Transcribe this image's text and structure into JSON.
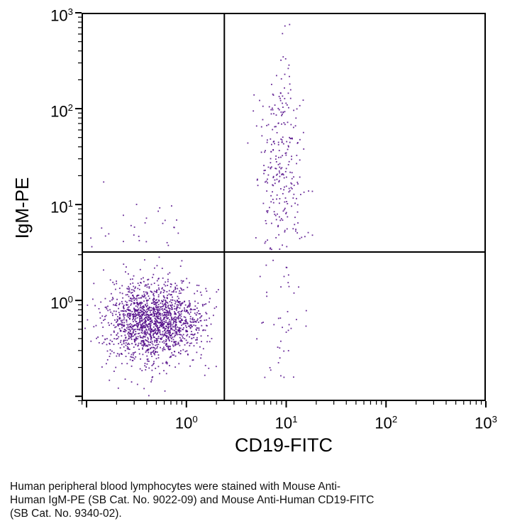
{
  "chart_data": {
    "type": "scatter",
    "title": "",
    "xlabel": "CD19-FITC",
    "ylabel": "IgM-PE",
    "x_scale": "log",
    "y_scale": "log",
    "x_range_log10": [
      -1.05,
      3.0
    ],
    "y_range_log10": [
      -1.05,
      3.0
    ],
    "tick_base": "10",
    "tick_exponents": [
      0,
      1,
      2,
      3
    ],
    "grid": false,
    "legend": "none",
    "axis_color": "#000000",
    "point_color": "#530d8a",
    "quadrant_gates": {
      "x": 2.4,
      "y": 3.2
    },
    "populations": [
      {
        "name": "CD19- IgM- lymphocytes",
        "count": 1600,
        "mean_log10": [
          -0.33,
          -0.22
        ],
        "sd_log10": [
          0.24,
          0.2
        ],
        "clip": {
          "x_max": 0.33
        }
      },
      {
        "name": "background scatter lower-left",
        "count": 60,
        "mean_log10": [
          -0.3,
          -0.3
        ],
        "sd_log10": [
          0.36,
          0.5
        ],
        "clip": {
          "x_max": 0.33,
          "y_max": 0.48
        }
      },
      {
        "name": "CD19- IgM+ sparse",
        "count": 28,
        "mean_log10": [
          -0.42,
          0.7
        ],
        "sd_log10": [
          0.3,
          0.18
        ],
        "clip": {
          "x_max": 0.4,
          "y_min": 0.53
        }
      },
      {
        "name": "CD19+ IgM+ B cells",
        "count": 275,
        "mean_log10": [
          0.95,
          1.38
        ],
        "sd_log10": [
          0.11,
          0.52
        ],
        "clip": {
          "x_min": 0.55,
          "y_min": 0.53,
          "y_max": 2.95
        }
      },
      {
        "name": "CD19+ IgM- cells",
        "count": 42,
        "mean_log10": [
          0.95,
          -0.1
        ],
        "sd_log10": [
          0.13,
          0.35
        ],
        "clip": {
          "x_min": 0.55,
          "y_max": 0.45
        }
      }
    ]
  },
  "caption": {
    "lines": [
      "Human peripheral blood lymphocytes were stained with Mouse Anti-",
      "Human IgM-PE (SB Cat. No. 9022-09) and Mouse Anti-Human CD19-FITC",
      "(SB Cat. No. 9340-02)."
    ]
  }
}
